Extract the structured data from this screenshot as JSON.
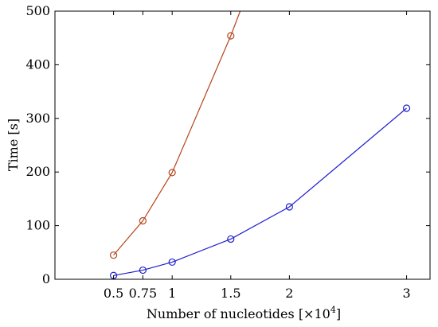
{
  "chart_data": {
    "type": "line",
    "xlabel": "Number of nucleotides [×10",
    "xlabel_sup": "4",
    "xlabel_close": "]",
    "ylabel": "Time [s]",
    "xlim": [
      0,
      3.2
    ],
    "ylim": [
      0,
      500
    ],
    "x_ticks": [
      0.5,
      0.75,
      1,
      1.5,
      2,
      3
    ],
    "x_tick_labels": [
      "0.5",
      "0.75",
      "1",
      "1.5",
      "2",
      "3"
    ],
    "y_ticks": [
      0,
      100,
      200,
      300,
      400,
      500
    ],
    "y_tick_labels": [
      "0",
      "100",
      "200",
      "300",
      "400",
      "500"
    ],
    "grid": false,
    "series": [
      {
        "color": "#b5451b",
        "marker": "circle",
        "x": [
          0.5,
          0.75,
          1,
          1.5,
          1.58
        ],
        "y": [
          45,
          109,
          199,
          454,
          500
        ],
        "marked": [
          true,
          true,
          true,
          true,
          false
        ]
      },
      {
        "color": "#1f1fcc",
        "marker": "circle",
        "x": [
          0.5,
          0.75,
          1,
          1.5,
          2,
          3
        ],
        "y": [
          7,
          17,
          32,
          75,
          135,
          319
        ],
        "marked": [
          true,
          true,
          true,
          true,
          true,
          true
        ]
      }
    ]
  }
}
